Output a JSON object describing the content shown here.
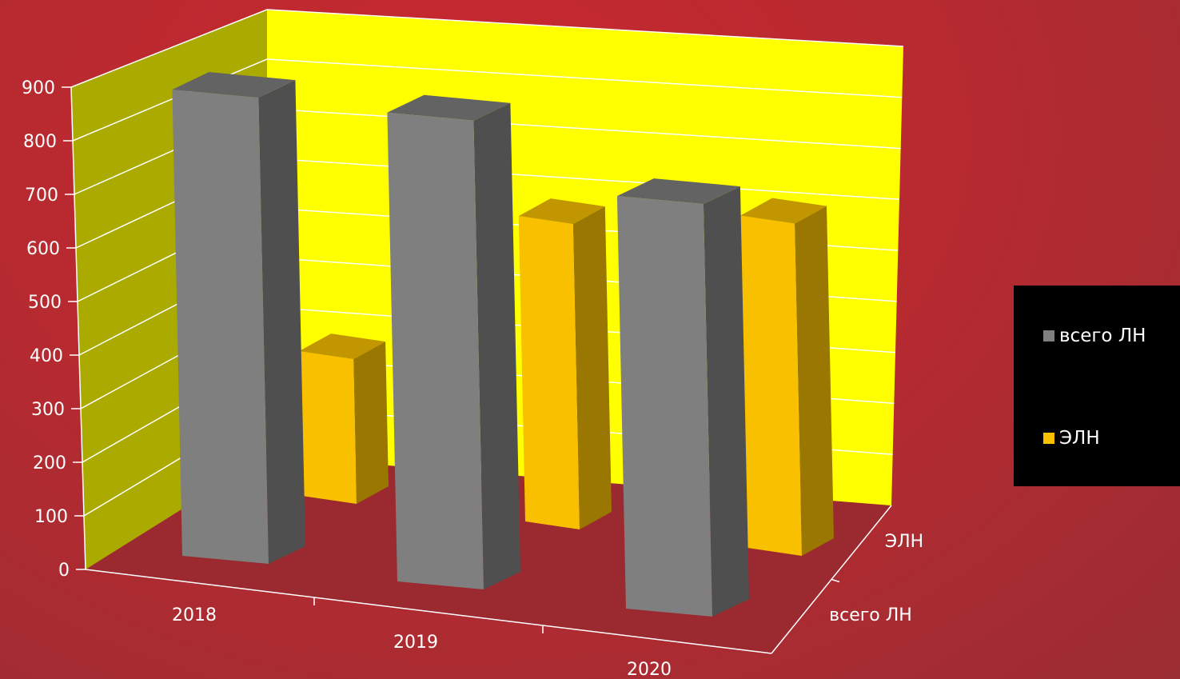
{
  "chart_data": {
    "type": "bar",
    "style": "3d-clustered",
    "categories": [
      "2018",
      "2019",
      "2020"
    ],
    "series": [
      {
        "name": "всего ЛН",
        "values": [
          870,
          875,
          770
        ],
        "color": "#7f7f7f"
      },
      {
        "name": "ЭЛН",
        "values": [
          270,
          570,
          620
        ],
        "color": "#f9c000"
      }
    ],
    "ylim": [
      0,
      900
    ],
    "yticks": [
      0,
      100,
      200,
      300,
      400,
      500,
      600,
      700,
      800,
      900
    ],
    "depth_labels": [
      "ЭЛН",
      "всего ЛН"
    ],
    "legend_position": "right",
    "grid": true,
    "colors": {
      "back_wall": "#ffff00",
      "side_wall": "#aaaa00",
      "floor": "#9b2a30"
    }
  }
}
